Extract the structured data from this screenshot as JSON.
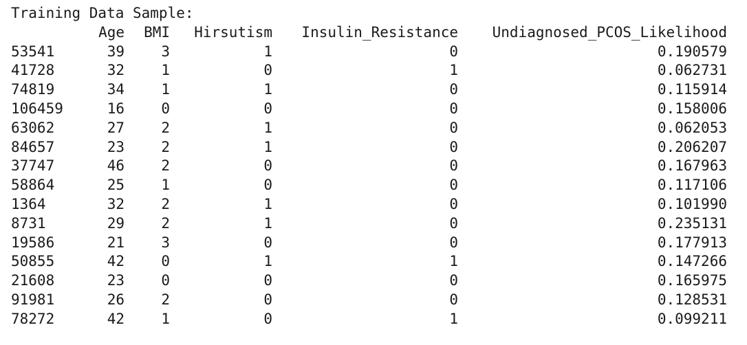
{
  "title": "Training Data Sample:",
  "columns": [
    "Age",
    "BMI",
    "Hirsutism",
    "Insulin_Resistance",
    "Undiagnosed_PCOS_Likelihood"
  ],
  "rows": [
    {
      "index": "53541",
      "Age": "39",
      "BMI": "3",
      "Hirsutism": "1",
      "Insulin_Resistance": "0",
      "Undiagnosed_PCOS_Likelihood": "0.190579"
    },
    {
      "index": "41728",
      "Age": "32",
      "BMI": "1",
      "Hirsutism": "0",
      "Insulin_Resistance": "1",
      "Undiagnosed_PCOS_Likelihood": "0.062731"
    },
    {
      "index": "74819",
      "Age": "34",
      "BMI": "1",
      "Hirsutism": "1",
      "Insulin_Resistance": "0",
      "Undiagnosed_PCOS_Likelihood": "0.115914"
    },
    {
      "index": "106459",
      "Age": "16",
      "BMI": "0",
      "Hirsutism": "0",
      "Insulin_Resistance": "0",
      "Undiagnosed_PCOS_Likelihood": "0.158006"
    },
    {
      "index": "63062",
      "Age": "27",
      "BMI": "2",
      "Hirsutism": "1",
      "Insulin_Resistance": "0",
      "Undiagnosed_PCOS_Likelihood": "0.062053"
    },
    {
      "index": "84657",
      "Age": "23",
      "BMI": "2",
      "Hirsutism": "1",
      "Insulin_Resistance": "0",
      "Undiagnosed_PCOS_Likelihood": "0.206207"
    },
    {
      "index": "37747",
      "Age": "46",
      "BMI": "2",
      "Hirsutism": "0",
      "Insulin_Resistance": "0",
      "Undiagnosed_PCOS_Likelihood": "0.167963"
    },
    {
      "index": "58864",
      "Age": "25",
      "BMI": "1",
      "Hirsutism": "0",
      "Insulin_Resistance": "0",
      "Undiagnosed_PCOS_Likelihood": "0.117106"
    },
    {
      "index": "1364",
      "Age": "32",
      "BMI": "2",
      "Hirsutism": "1",
      "Insulin_Resistance": "0",
      "Undiagnosed_PCOS_Likelihood": "0.101990"
    },
    {
      "index": "8731",
      "Age": "29",
      "BMI": "2",
      "Hirsutism": "1",
      "Insulin_Resistance": "0",
      "Undiagnosed_PCOS_Likelihood": "0.235131"
    },
    {
      "index": "19586",
      "Age": "21",
      "BMI": "3",
      "Hirsutism": "0",
      "Insulin_Resistance": "0",
      "Undiagnosed_PCOS_Likelihood": "0.177913"
    },
    {
      "index": "50855",
      "Age": "42",
      "BMI": "0",
      "Hirsutism": "1",
      "Insulin_Resistance": "1",
      "Undiagnosed_PCOS_Likelihood": "0.147266"
    },
    {
      "index": "21608",
      "Age": "23",
      "BMI": "0",
      "Hirsutism": "0",
      "Insulin_Resistance": "0",
      "Undiagnosed_PCOS_Likelihood": "0.165975"
    },
    {
      "index": "91981",
      "Age": "26",
      "BMI": "2",
      "Hirsutism": "0",
      "Insulin_Resistance": "0",
      "Undiagnosed_PCOS_Likelihood": "0.128531"
    },
    {
      "index": "78272",
      "Age": "42",
      "BMI": "1",
      "Hirsutism": "0",
      "Insulin_Resistance": "1",
      "Undiagnosed_PCOS_Likelihood": "0.099211"
    }
  ]
}
